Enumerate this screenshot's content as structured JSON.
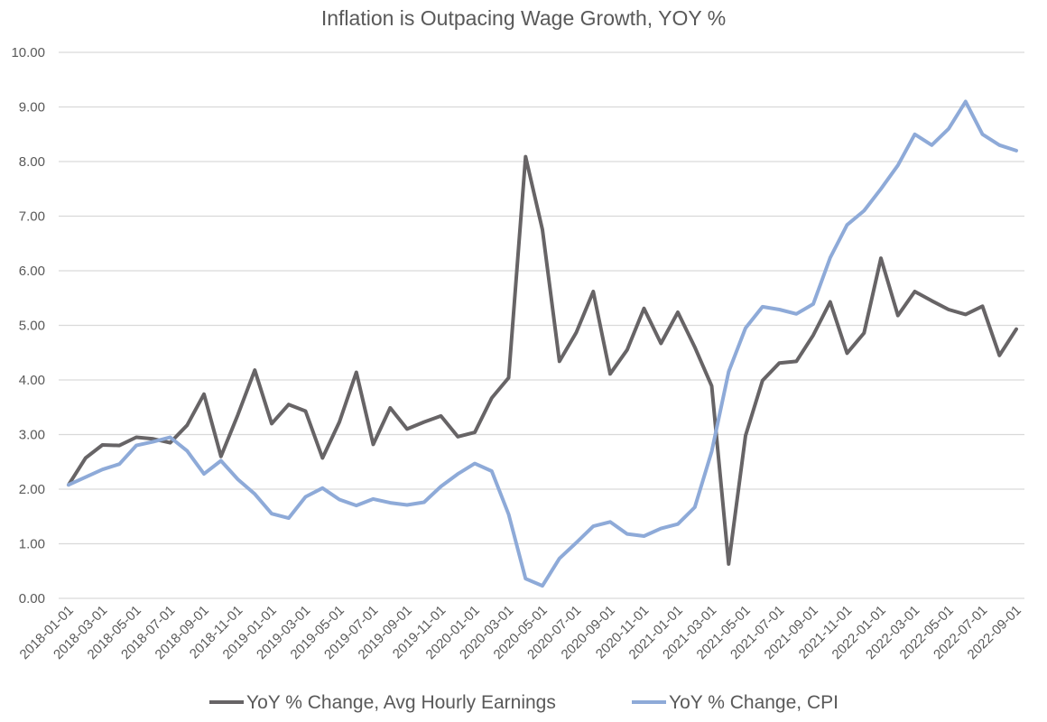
{
  "chart_data": {
    "type": "line",
    "title": "Inflation is Outpacing Wage Growth, YOY %",
    "xlabel": "",
    "ylabel": "",
    "ylim": [
      0,
      10
    ],
    "y_ticks": [
      "0.00",
      "1.00",
      "2.00",
      "3.00",
      "4.00",
      "5.00",
      "6.00",
      "7.00",
      "8.00",
      "9.00",
      "10.00"
    ],
    "grid": "horizontal",
    "legend_position": "bottom",
    "x": [
      "2018-01-01",
      "2018-02-01",
      "2018-03-01",
      "2018-04-01",
      "2018-05-01",
      "2018-06-01",
      "2018-07-01",
      "2018-08-01",
      "2018-09-01",
      "2018-10-01",
      "2018-11-01",
      "2018-12-01",
      "2019-01-01",
      "2019-02-01",
      "2019-03-01",
      "2019-04-01",
      "2019-05-01",
      "2019-06-01",
      "2019-07-01",
      "2019-08-01",
      "2019-09-01",
      "2019-10-01",
      "2019-11-01",
      "2019-12-01",
      "2020-01-01",
      "2020-02-01",
      "2020-03-01",
      "2020-04-01",
      "2020-05-01",
      "2020-06-01",
      "2020-07-01",
      "2020-08-01",
      "2020-09-01",
      "2020-10-01",
      "2020-11-01",
      "2020-12-01",
      "2021-01-01",
      "2021-02-01",
      "2021-03-01",
      "2021-04-01",
      "2021-05-01",
      "2021-06-01",
      "2021-07-01",
      "2021-08-01",
      "2021-09-01",
      "2021-10-01",
      "2021-11-01",
      "2021-12-01",
      "2022-01-01",
      "2022-02-01",
      "2022-03-01",
      "2022-04-01",
      "2022-05-01",
      "2022-06-01",
      "2022-07-01",
      "2022-08-01",
      "2022-09-01"
    ],
    "x_tick_labels": [
      "2018-01-01",
      "2018-03-01",
      "2018-05-01",
      "2018-07-01",
      "2018-09-01",
      "2018-11-01",
      "2019-01-01",
      "2019-03-01",
      "2019-05-01",
      "2019-07-01",
      "2019-09-01",
      "2019-11-01",
      "2020-01-01",
      "2020-03-01",
      "2020-05-01",
      "2020-07-01",
      "2020-09-01",
      "2020-11-01",
      "2021-01-01",
      "2021-03-01",
      "2021-05-01",
      "2021-07-01",
      "2021-09-01",
      "2021-11-01",
      "2022-01-01",
      "2022-03-01",
      "2022-05-01",
      "2022-07-01",
      "2022-09-01"
    ],
    "series": [
      {
        "name": "YoY % Change, Avg Hourly Earnings",
        "color": "#676466",
        "values": [
          2.08,
          2.57,
          2.81,
          2.8,
          2.95,
          2.92,
          2.85,
          3.17,
          3.74,
          2.6,
          3.36,
          4.18,
          3.2,
          3.55,
          3.43,
          2.57,
          3.23,
          4.14,
          2.82,
          3.49,
          3.1,
          3.23,
          3.34,
          2.96,
          3.04,
          3.67,
          4.04,
          8.09,
          6.75,
          4.34,
          4.87,
          5.62,
          4.11,
          4.55,
          5.31,
          4.67,
          5.24,
          4.6,
          3.89,
          0.63,
          2.98,
          3.99,
          4.31,
          4.34,
          4.82,
          5.43,
          4.49,
          4.86,
          6.23,
          5.18,
          5.62,
          5.45,
          5.29,
          5.2,
          5.35,
          4.45,
          4.93
        ]
      },
      {
        "name": "YoY % Change, CPI",
        "color": "#8eaad8",
        "values": [
          2.08,
          2.22,
          2.36,
          2.46,
          2.8,
          2.87,
          2.95,
          2.7,
          2.28,
          2.52,
          2.18,
          1.91,
          1.55,
          1.47,
          1.86,
          2.02,
          1.81,
          1.7,
          1.82,
          1.75,
          1.71,
          1.76,
          2.05,
          2.28,
          2.47,
          2.33,
          1.54,
          0.36,
          0.23,
          0.73,
          1.02,
          1.32,
          1.4,
          1.18,
          1.14,
          1.28,
          1.36,
          1.67,
          2.69,
          4.15,
          4.95,
          5.34,
          5.29,
          5.21,
          5.39,
          6.24,
          6.84,
          7.1,
          7.5,
          7.93,
          8.5,
          8.3,
          8.6,
          9.1,
          8.5,
          8.3,
          8.2
        ]
      }
    ]
  }
}
